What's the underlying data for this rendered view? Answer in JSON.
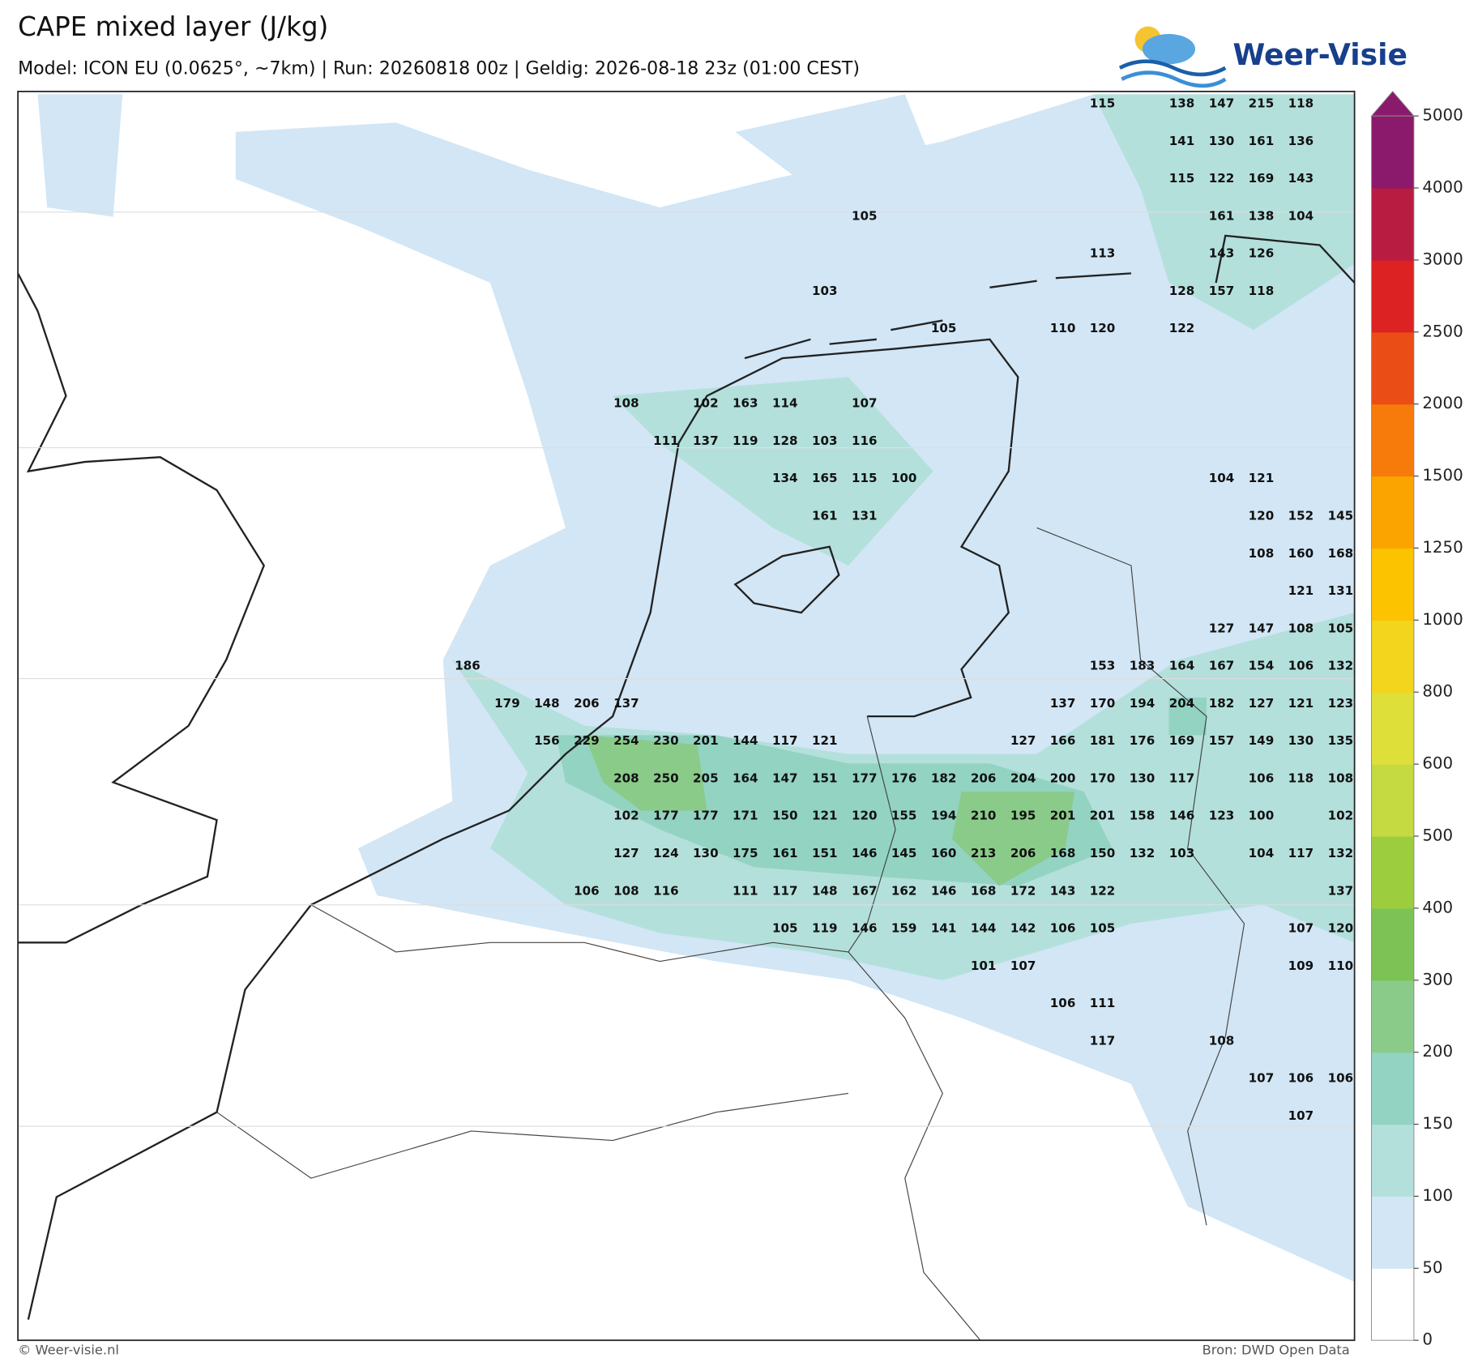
{
  "header": {
    "title": "CAPE mixed layer (J/kg)",
    "subtitle": "Model: ICON EU (0.0625°, ~7km)  |  Run: 20260818 00z  |  Geldig: 2026-08-18 23z (01:00 CEST)"
  },
  "logo": "Weer-Visie",
  "map": {
    "values": [
      [
        115,
        138,
        147,
        215,
        118
      ],
      [
        141,
        130,
        161,
        136
      ],
      [
        115,
        122,
        169,
        143
      ],
      [
        105,
        161,
        138,
        104
      ],
      [
        113,
        143,
        126
      ],
      [
        103,
        128,
        157,
        118
      ],
      [
        105,
        110,
        120,
        122
      ],
      [
        108,
        102,
        163,
        114,
        107
      ],
      [
        111,
        137,
        119,
        128,
        103,
        116
      ],
      [
        134,
        165,
        115,
        100,
        104,
        121
      ],
      [
        161,
        131,
        120,
        152,
        145
      ],
      [
        108,
        160,
        168
      ],
      [
        121,
        131
      ],
      [
        127,
        147,
        108,
        105
      ],
      [
        186,
        153,
        183,
        164,
        167,
        154,
        106,
        132
      ],
      [
        179,
        148,
        206,
        137,
        137,
        170,
        194,
        204,
        182,
        127,
        121,
        123
      ],
      [
        156,
        229,
        254,
        230,
        201,
        144,
        117,
        121,
        127,
        166,
        181,
        176,
        169,
        157,
        149,
        130,
        135
      ],
      [
        208,
        250,
        205,
        164,
        147,
        151,
        177,
        176,
        182,
        206,
        204,
        200,
        170,
        130,
        117,
        106,
        118,
        108
      ],
      [
        102,
        177,
        177,
        171,
        150,
        121,
        120,
        155,
        194,
        210,
        195,
        201,
        201,
        158,
        146,
        123,
        100,
        102
      ],
      [
        127,
        124,
        130,
        175,
        161,
        151,
        146,
        145,
        160,
        213,
        206,
        168,
        150,
        132,
        103,
        104,
        117,
        132
      ],
      [
        106,
        108,
        116,
        111,
        117,
        148,
        167,
        162,
        146,
        168,
        172,
        143,
        122,
        137
      ],
      [
        105,
        119,
        146,
        159,
        141,
        144,
        142,
        106,
        105,
        107,
        120
      ],
      [
        101,
        107,
        109,
        110
      ],
      [
        106,
        111
      ],
      [
        117,
        108
      ],
      [
        107,
        106,
        106
      ],
      [
        107
      ]
    ]
  },
  "colorbar": {
    "levels": [
      0,
      50,
      100,
      150,
      200,
      300,
      400,
      500,
      600,
      800,
      1000,
      1250,
      1500,
      2000,
      2500,
      3000,
      4000,
      5000
    ],
    "colors": [
      "#ffffff",
      "#d2e6f5",
      "#b4e0dc",
      "#93d3c2",
      "#8acb8a",
      "#7cc254",
      "#9ccd3e",
      "#c4da40",
      "#dedf38",
      "#f2d51c",
      "#fcc300",
      "#fba400",
      "#f67b0a",
      "#ea4e16",
      "#dc2222",
      "#b81c40",
      "#8b1a6c"
    ]
  },
  "footer": {
    "left": "© Weer-visie.nl",
    "right": "Bron: DWD Open Data"
  }
}
